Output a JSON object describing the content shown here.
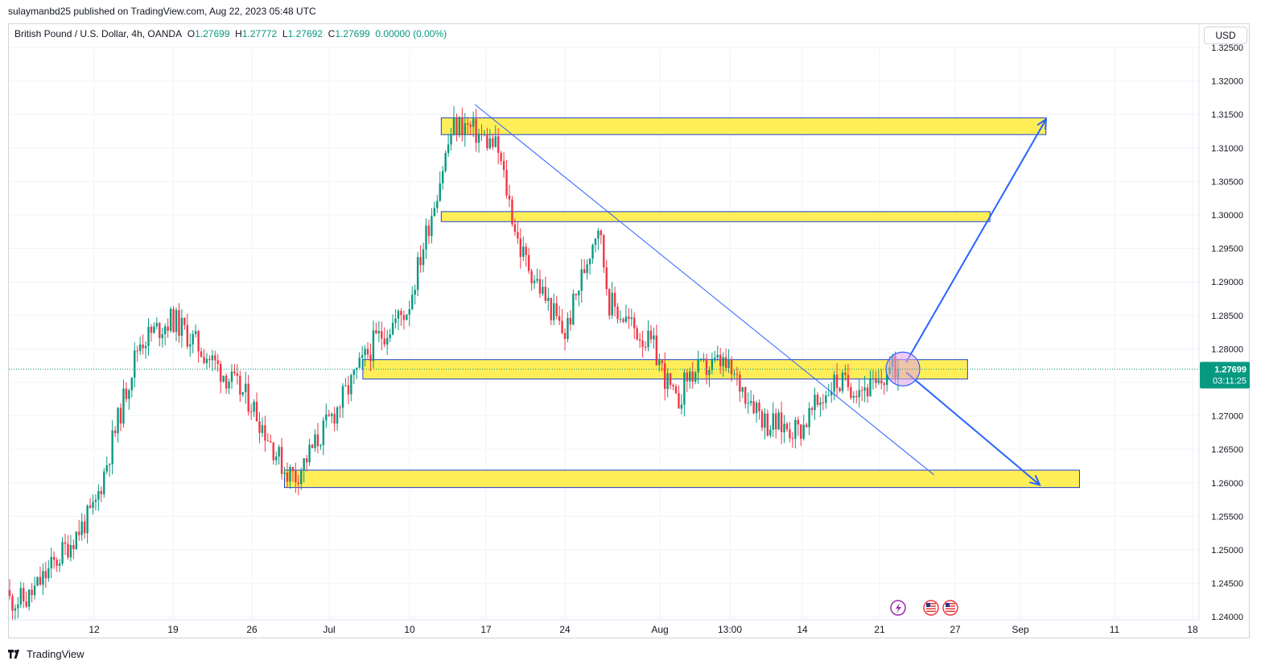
{
  "header": {
    "published": "sulaymanbd25 published on TradingView.com, Aug 22, 2023 05:48 UTC"
  },
  "legend": {
    "symbol": "British Pound / U.S. Dollar, 4h, OANDA",
    "o_label": "O",
    "o": "1.27699",
    "h_label": "H",
    "h": "1.27772",
    "l_label": "L",
    "l": "1.27692",
    "c_label": "C",
    "c": "1.27699",
    "change": "0.00000 (0.00%)"
  },
  "currency_button": "USD",
  "price_label": {
    "price": "1.27699",
    "countdown": "03:11:25"
  },
  "footer": {
    "brand": "TradingView"
  },
  "colors": {
    "up": "#089981",
    "down": "#f23645",
    "zone_fill": "#ffeb3b",
    "zone_stroke": "#1e3fd6",
    "trendline": "#2962ff",
    "price_bg": "#089981"
  },
  "chart_data": {
    "type": "candlestick",
    "timeframe": "4h",
    "ylim": [
      1.2395,
      1.3245
    ],
    "y_ticks": [
      "1.32500",
      "1.32000",
      "1.31500",
      "1.31000",
      "1.30500",
      "1.30000",
      "1.29500",
      "1.29000",
      "1.28500",
      "1.28000",
      "1.27500",
      "1.27000",
      "1.26500",
      "1.26000",
      "1.25500",
      "1.25000",
      "1.24500",
      "1.24000"
    ],
    "x_ticks": [
      "12",
      "19",
      "26",
      "Jul",
      "10",
      "17",
      "24",
      "Aug",
      "13:00",
      "14",
      "21",
      "27",
      "Sep",
      "11",
      "18"
    ],
    "last_price": 1.27699,
    "key_points": [
      {
        "date": "Jun 06",
        "close": 1.2425
      },
      {
        "date": "Jun 12",
        "close": 1.256
      },
      {
        "date": "Jun 16",
        "close": 1.281
      },
      {
        "date": "Jun 19",
        "close": 1.2845
      },
      {
        "date": "Jun 26",
        "close": 1.272
      },
      {
        "date": "Jun 29",
        "close": 1.262
      },
      {
        "date": "Jun 30",
        "close": 1.261
      },
      {
        "date": "Jul 04",
        "close": 1.272
      },
      {
        "date": "Jul 07",
        "close": 1.281
      },
      {
        "date": "Jul 10",
        "close": 1.286
      },
      {
        "date": "Jul 14",
        "close": 1.313
      },
      {
        "date": "Jul 15",
        "close": 1.3135
      },
      {
        "date": "Jul 18",
        "close": 1.31
      },
      {
        "date": "Jul 20",
        "close": 1.295
      },
      {
        "date": "Jul 24",
        "close": 1.282
      },
      {
        "date": "Jul 27",
        "close": 1.299
      },
      {
        "date": "Jul 28",
        "close": 1.287
      },
      {
        "date": "Aug 01",
        "close": 1.28
      },
      {
        "date": "Aug 03",
        "close": 1.2715
      },
      {
        "date": "Aug 04",
        "close": 1.276
      },
      {
        "date": "Aug 07",
        "close": 1.278
      },
      {
        "date": "Aug 10",
        "close": 1.272
      },
      {
        "date": "Aug 11",
        "close": 1.269
      },
      {
        "date": "Aug 14",
        "close": 1.268
      },
      {
        "date": "Aug 17",
        "close": 1.275
      },
      {
        "date": "Aug 21",
        "close": 1.274
      },
      {
        "date": "Aug 22",
        "close": 1.27699
      }
    ],
    "annotations": {
      "zones": [
        {
          "from_date": "Jul 13",
          "to_date": "Sep 05",
          "low": 1.312,
          "high": 1.3145
        },
        {
          "from_date": "Jul 13",
          "to_date": "Aug 31",
          "low": 1.299,
          "high": 1.3005
        },
        {
          "from_date": "Jul 06",
          "to_date": "Aug 29",
          "low": 1.2755,
          "high": 1.2784
        },
        {
          "from_date": "Jun 29",
          "to_date": "Sep 08",
          "low": 1.2593,
          "high": 1.2619
        }
      ],
      "trendline": {
        "from_date": "Jul 16",
        "from_price": 1.3165,
        "to_date": "Aug 26",
        "to_price": 1.2612
      },
      "arrows": [
        {
          "from_price": 1.278,
          "to_price": 1.3143,
          "direction": "up"
        },
        {
          "from_price": 1.2765,
          "to_price": 1.2597,
          "direction": "down"
        }
      ],
      "highlight_circle_price": 1.277
    }
  }
}
